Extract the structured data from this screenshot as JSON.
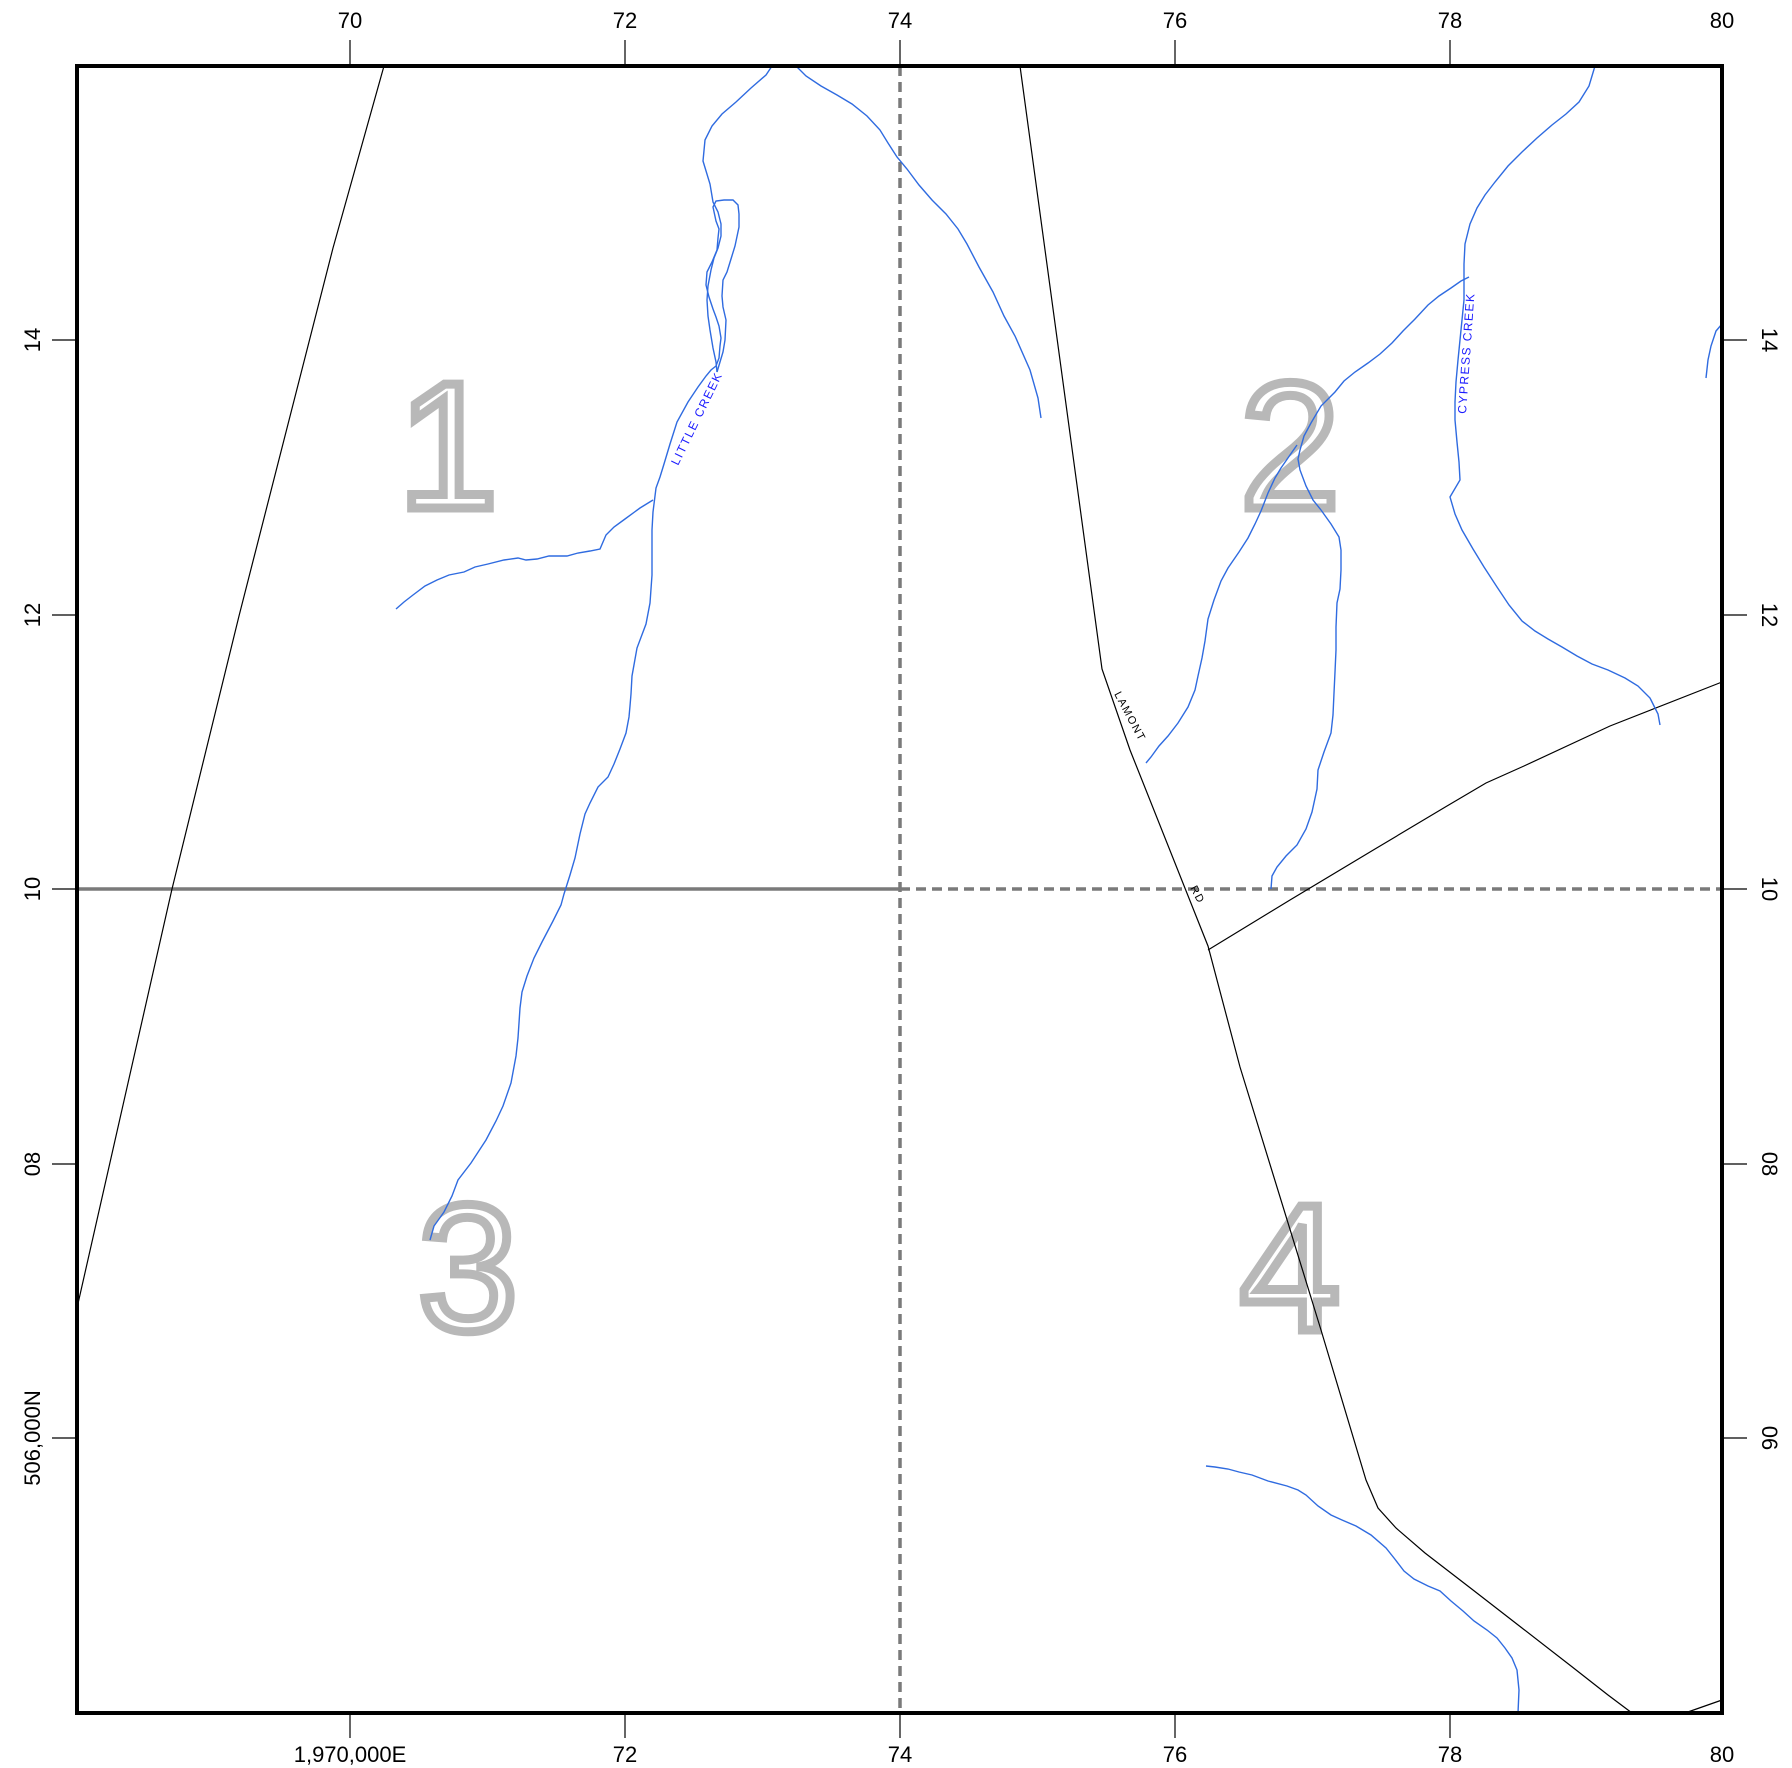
{
  "map": {
    "x_axis_top": [
      "70",
      "72",
      "74",
      "76",
      "78",
      "80"
    ],
    "x_axis_bottom": [
      "1,970,000E",
      "72",
      "74",
      "76",
      "78",
      "80"
    ],
    "y_axis_left": [
      "14",
      "12",
      "10",
      "08",
      "506,000N"
    ],
    "y_axis_right": [
      "14",
      "12",
      "10",
      "08",
      "06"
    ],
    "quadrants": [
      "1",
      "2",
      "3",
      "4"
    ],
    "streams": [
      {
        "label": "LITTLE CREEK"
      },
      {
        "label": "CYPRESS CREEK"
      }
    ],
    "roads": [
      {
        "label_part1": "LAMONT",
        "label_part2": "RD"
      }
    ],
    "colors": {
      "stream": "#2f6be0",
      "stream_label": "#1a1aff",
      "road": "#000000",
      "quadrant_numeral": "#b8b8b8",
      "section_line": "#7a7a7a",
      "frame": "#000000"
    }
  }
}
